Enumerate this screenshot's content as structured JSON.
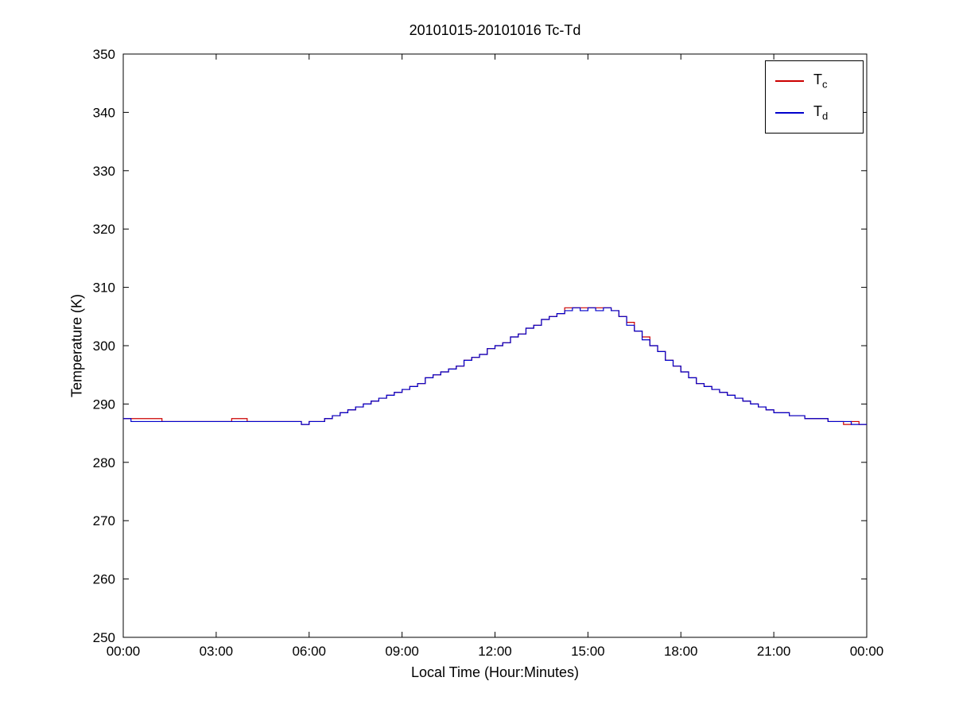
{
  "chart_data": {
    "type": "line",
    "title": "20101015-20101016 Tc-Td",
    "xlabel": "Local Time (Hour:Minutes)",
    "ylabel": "Temperature (K)",
    "xlim": [
      0,
      24
    ],
    "ylim": [
      250,
      350
    ],
    "grid": false,
    "legend_position": "top-right",
    "interpolation": "step-after",
    "x_ticks": [
      0,
      3,
      6,
      9,
      12,
      15,
      18,
      21,
      24
    ],
    "x_tick_labels": [
      "00:00",
      "03:00",
      "06:00",
      "09:00",
      "12:00",
      "15:00",
      "18:00",
      "21:00",
      "00:00"
    ],
    "y_ticks": [
      250,
      260,
      270,
      280,
      290,
      300,
      310,
      320,
      330,
      340,
      350
    ],
    "y_tick_labels": [
      "250",
      "260",
      "270",
      "280",
      "290",
      "300",
      "310",
      "320",
      "330",
      "340",
      "350"
    ],
    "x_hours": [
      0,
      0.25,
      0.5,
      0.75,
      1,
      1.25,
      1.5,
      1.75,
      2,
      2.25,
      2.5,
      2.75,
      3,
      3.25,
      3.5,
      3.75,
      4,
      4.25,
      4.5,
      4.75,
      5,
      5.25,
      5.5,
      5.75,
      6,
      6.25,
      6.5,
      6.75,
      7,
      7.25,
      7.5,
      7.75,
      8,
      8.25,
      8.5,
      8.75,
      9,
      9.25,
      9.5,
      9.75,
      10,
      10.25,
      10.5,
      10.75,
      11,
      11.25,
      11.5,
      11.75,
      12,
      12.25,
      12.5,
      12.75,
      13,
      13.25,
      13.5,
      13.75,
      14,
      14.25,
      14.5,
      14.75,
      15,
      15.25,
      15.5,
      15.75,
      16,
      16.25,
      16.5,
      16.75,
      17,
      17.25,
      17.5,
      17.75,
      18,
      18.25,
      18.5,
      18.75,
      19,
      19.25,
      19.5,
      19.75,
      20,
      20.25,
      20.5,
      20.75,
      21,
      21.25,
      21.5,
      21.75,
      22,
      22.25,
      22.5,
      22.75,
      23,
      23.25,
      23.5,
      23.75,
      24
    ],
    "series": [
      {
        "name": "Tc",
        "label_main": "T",
        "label_sub": "c",
        "color": "#cc0000",
        "values": [
          287.5,
          287.5,
          287.5,
          287.5,
          287.5,
          287,
          287,
          287,
          287,
          287,
          287,
          287,
          287,
          287,
          287.5,
          287.5,
          287,
          287,
          287,
          287,
          287,
          287,
          287,
          286.5,
          287,
          287,
          287.5,
          288,
          288.5,
          289,
          289.5,
          290,
          290.5,
          291,
          291.5,
          292,
          292.5,
          293,
          293.5,
          294.5,
          295,
          295.5,
          296,
          296.5,
          297.5,
          298,
          298.5,
          299.5,
          300,
          300.5,
          301.5,
          302,
          303,
          303.5,
          304.5,
          305,
          305.5,
          306.5,
          306.5,
          306.5,
          306.5,
          306.5,
          306.5,
          306,
          305,
          304,
          302.5,
          301.5,
          300,
          299,
          297.5,
          296.5,
          295.5,
          294.5,
          293.5,
          293,
          292.5,
          292,
          291.5,
          291,
          290.5,
          290,
          289.5,
          289,
          288.5,
          288.5,
          288,
          288,
          287.5,
          287.5,
          287.5,
          287,
          287,
          286.5,
          287,
          286.5,
          286.5
        ]
      },
      {
        "name": "Td",
        "label_main": "T",
        "label_sub": "d",
        "color": "#0000cc",
        "values": [
          287.5,
          287,
          287,
          287,
          287,
          287,
          287,
          287,
          287,
          287,
          287,
          287,
          287,
          287,
          287,
          287,
          287,
          287,
          287,
          287,
          287,
          287,
          287,
          286.5,
          287,
          287,
          287.5,
          288,
          288.5,
          289,
          289.5,
          290,
          290.5,
          291,
          291.5,
          292,
          292.5,
          293,
          293.5,
          294.5,
          295,
          295.5,
          296,
          296.5,
          297.5,
          298,
          298.5,
          299.5,
          300,
          300.5,
          301.5,
          302,
          303,
          303.5,
          304.5,
          305,
          305.5,
          306,
          306.5,
          306,
          306.5,
          306,
          306.5,
          306,
          305,
          303.5,
          302.5,
          301,
          300,
          299,
          297.5,
          296.5,
          295.5,
          294.5,
          293.5,
          293,
          292.5,
          292,
          291.5,
          291,
          290.5,
          290,
          289.5,
          289,
          288.5,
          288.5,
          288,
          288,
          287.5,
          287.5,
          287.5,
          287,
          287,
          287,
          286.5,
          286.5,
          286.5
        ]
      }
    ],
    "axis_color": "#000000"
  }
}
